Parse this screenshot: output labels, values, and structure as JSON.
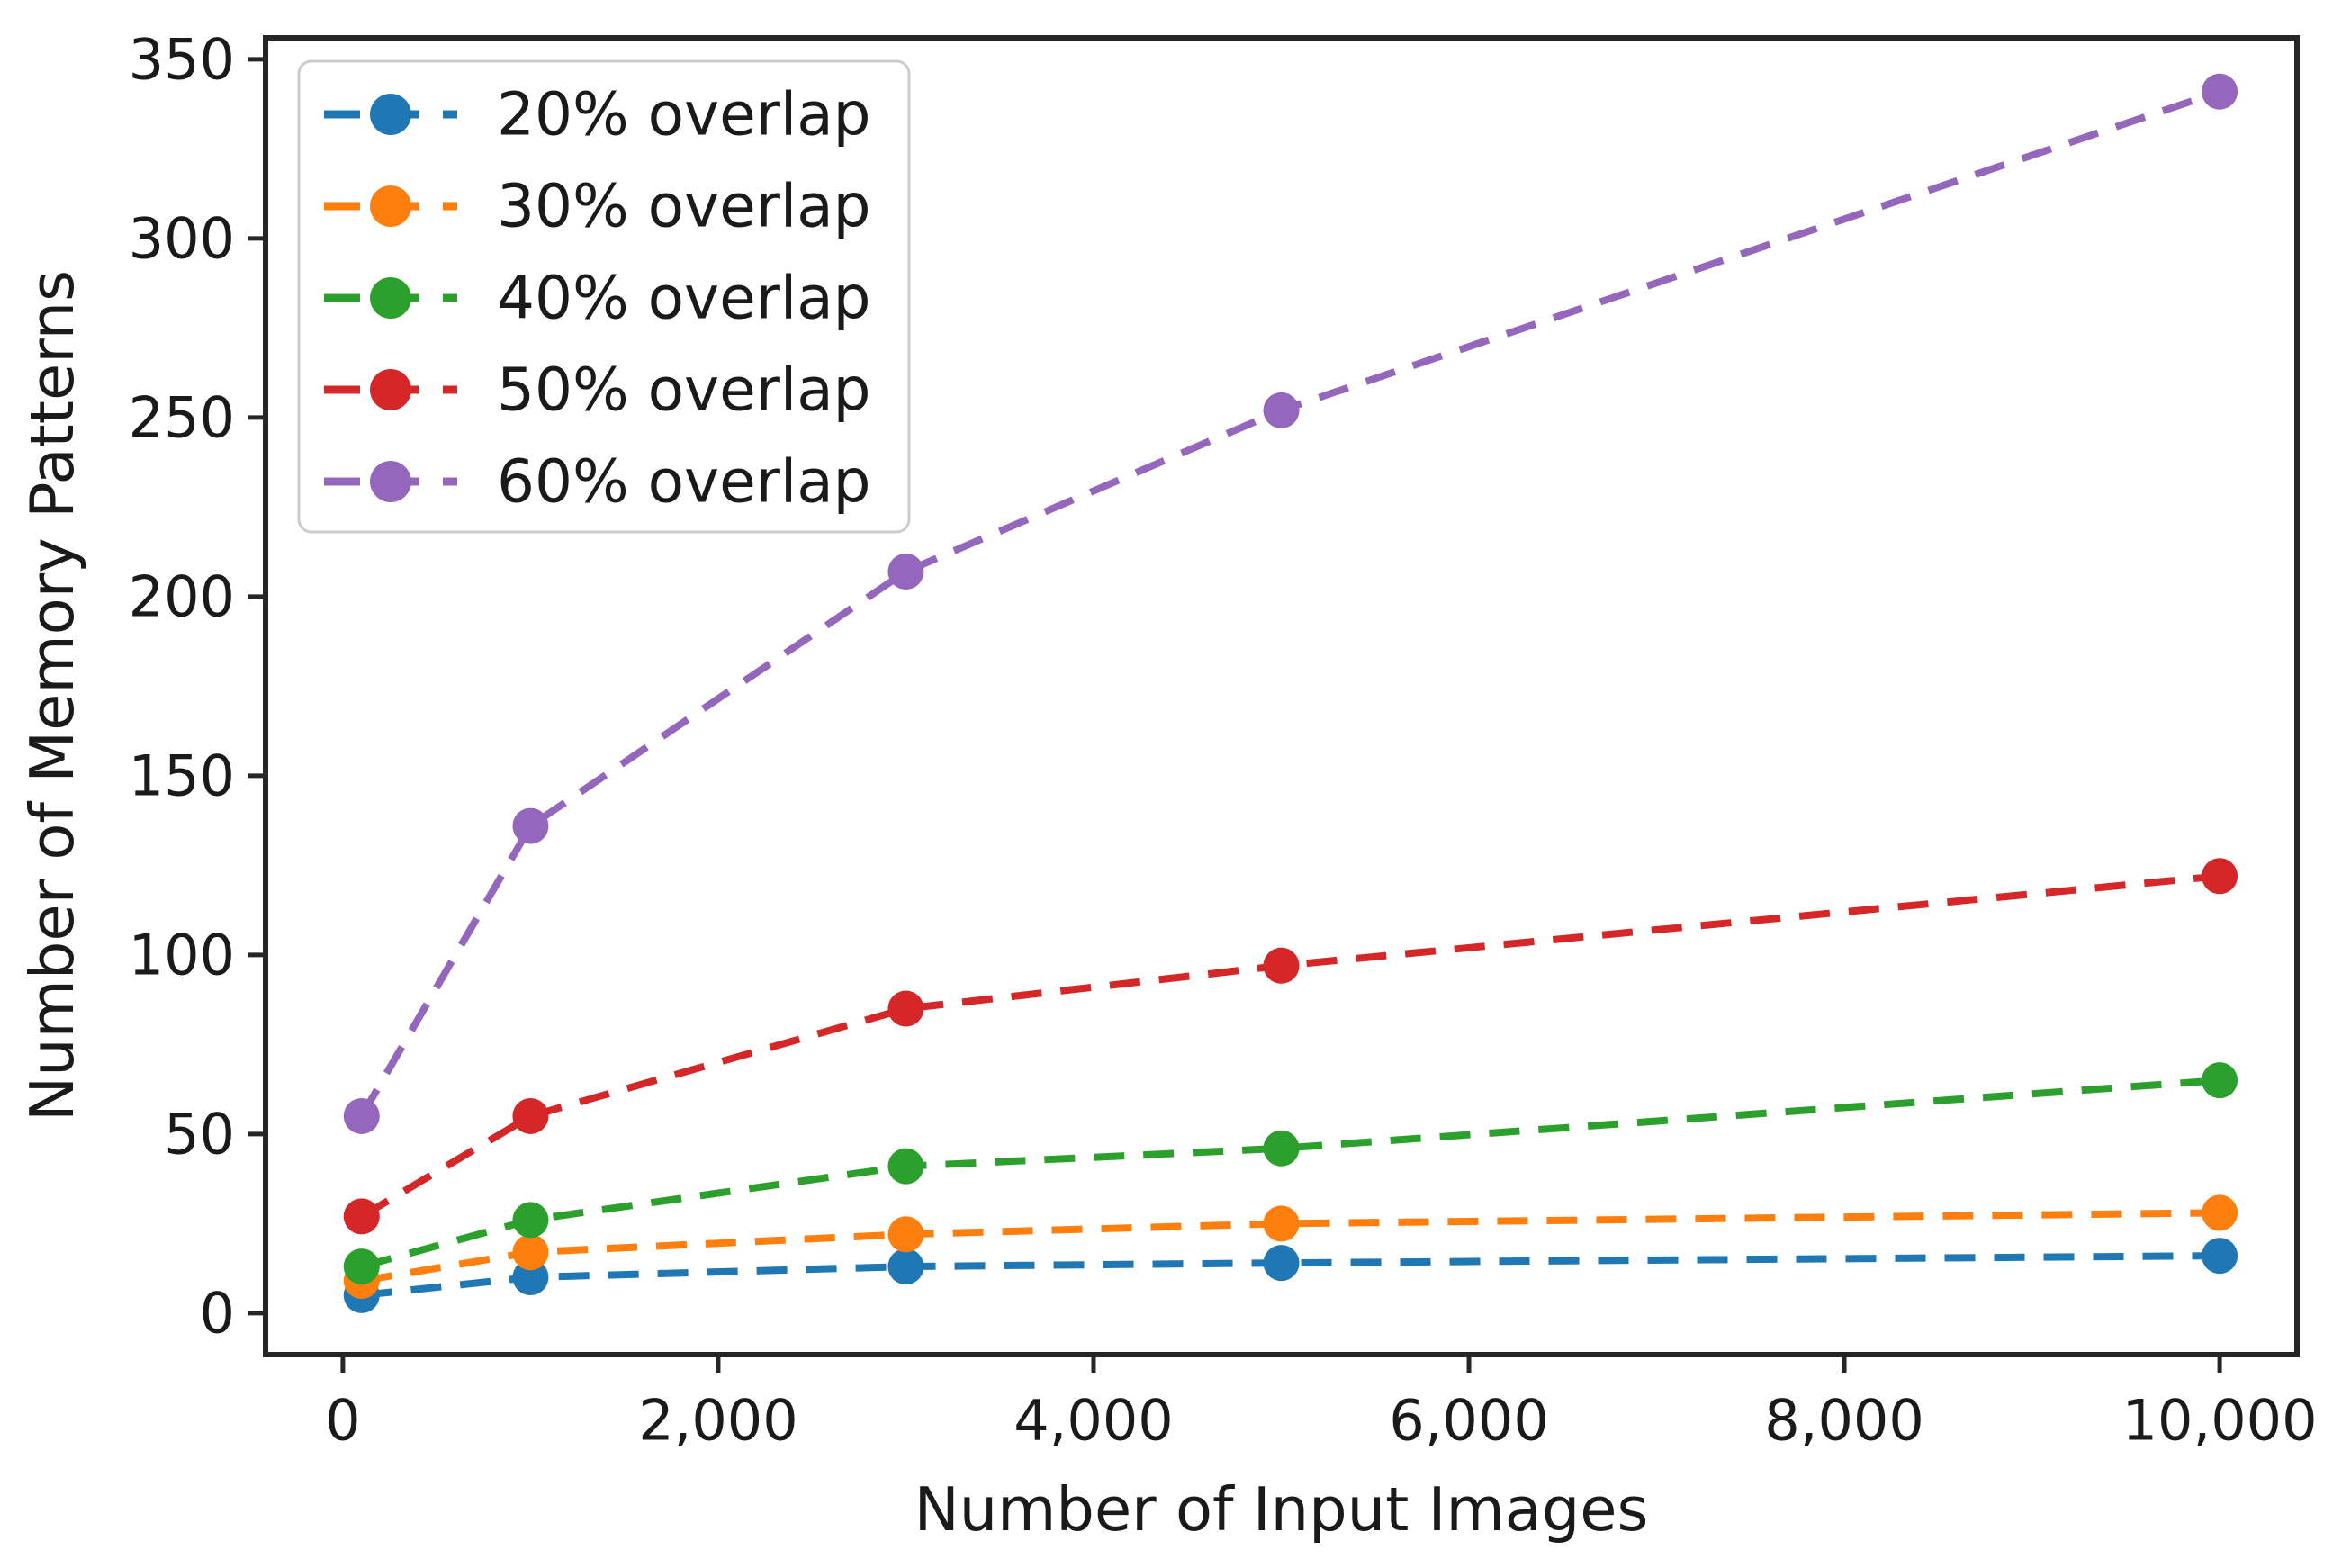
{
  "figure": {
    "background": "#ffffff",
    "spine_color": "#262626",
    "text_color": "#1a1a1a"
  },
  "chart_data": {
    "type": "line",
    "title": "",
    "xlabel": "Number of Input Images",
    "ylabel": "Number of Memory Patterns",
    "x": [
      100,
      1000,
      3000,
      5000,
      10000
    ],
    "series": [
      {
        "name": "20% overlap",
        "color": "#1f77b4",
        "values": [
          5,
          10,
          13,
          14,
          16
        ]
      },
      {
        "name": "30% overlap",
        "color": "#ff7f0e",
        "values": [
          9,
          17,
          22,
          25,
          28
        ]
      },
      {
        "name": "40% overlap",
        "color": "#2ca02c",
        "values": [
          13,
          26,
          41,
          46,
          65
        ]
      },
      {
        "name": "50% overlap",
        "color": "#d62728",
        "values": [
          27,
          55,
          85,
          97,
          122
        ]
      },
      {
        "name": "60% overlap",
        "color": "#9467bd",
        "values": [
          55,
          136,
          207,
          252,
          341
        ]
      }
    ],
    "x_ticks": {
      "values": [
        0,
        2000,
        4000,
        6000,
        8000,
        10000
      ],
      "labels": [
        "0",
        "2,000",
        "4,000",
        "6,000",
        "8,000",
        "10,000"
      ]
    },
    "y_ticks": {
      "values": [
        0,
        50,
        100,
        150,
        200,
        250,
        300,
        350
      ],
      "labels": [
        "0",
        "50",
        "100",
        "150",
        "200",
        "250",
        "300",
        "350"
      ]
    },
    "xlim": [
      -412,
      10412
    ],
    "ylim": [
      -11.6,
      356
    ],
    "grid": false,
    "line_style": "dashed",
    "marker": "circle",
    "legend_position": "upper left"
  }
}
